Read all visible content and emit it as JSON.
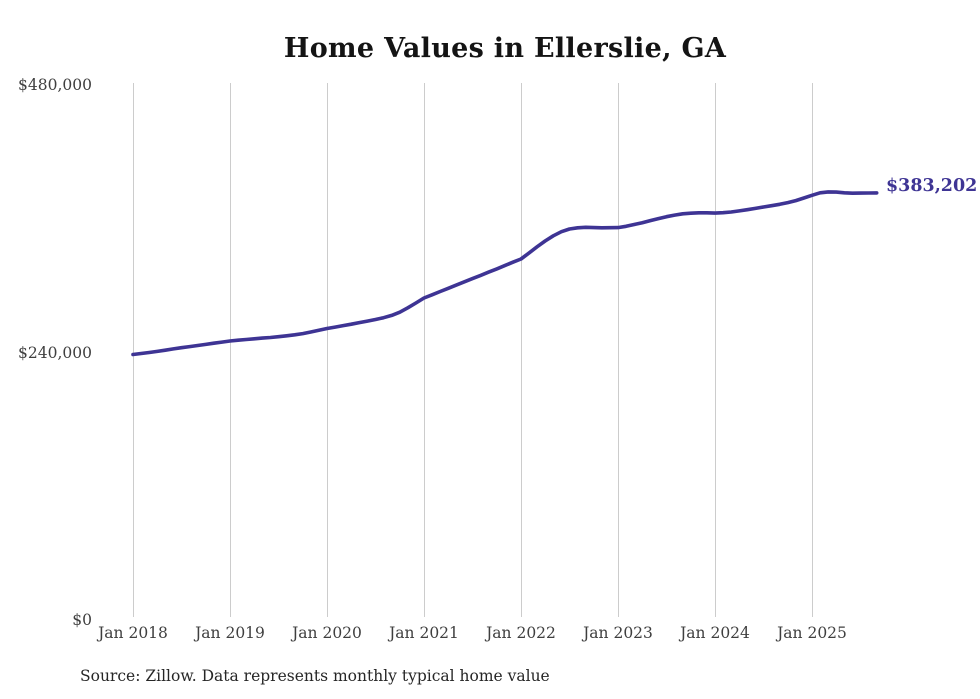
{
  "chart_data": {
    "type": "line",
    "title": "Home Values in Ellerslie, GA",
    "source": "Source: Zillow. Data represents monthly typical home value",
    "end_label": "$383,202",
    "latest_value": 383202,
    "xlabel": "",
    "ylabel": "",
    "ylim": [
      0,
      480000
    ],
    "grid": "vertical-only",
    "legend": "none",
    "accent_color": "#3e3494",
    "grid_color": "#cccccc",
    "yticks": [
      {
        "value": 0,
        "label": "$0"
      },
      {
        "value": 240000,
        "label": "$240,000"
      },
      {
        "value": 480000,
        "label": "$480,000"
      }
    ],
    "xticks": [
      {
        "month_index": 0,
        "label": "Jan 2018"
      },
      {
        "month_index": 12,
        "label": "Jan 2019"
      },
      {
        "month_index": 24,
        "label": "Jan 2020"
      },
      {
        "month_index": 36,
        "label": "Jan 2021"
      },
      {
        "month_index": 48,
        "label": "Jan 2022"
      },
      {
        "month_index": 60,
        "label": "Jan 2023"
      },
      {
        "month_index": 72,
        "label": "Jan 2024"
      },
      {
        "month_index": 84,
        "label": "Jan 2025"
      }
    ],
    "series": [
      {
        "name": "Monthly typical home value",
        "start_month": "2018-01",
        "end_month": "2025-09",
        "values": [
          238200,
          239100,
          240000,
          241000,
          242100,
          243200,
          244300,
          245300,
          246300,
          247300,
          248300,
          249300,
          250300,
          251000,
          251700,
          252300,
          252900,
          253500,
          254200,
          255000,
          255900,
          257000,
          258400,
          259900,
          261500,
          262800,
          264100,
          265400,
          266800,
          268200,
          269600,
          271200,
          273300,
          276200,
          280100,
          284400,
          288900,
          291800,
          294700,
          297600,
          300500,
          303400,
          306300,
          309200,
          312100,
          315000,
          318000,
          321000,
          323900,
          329400,
          334900,
          340100,
          344700,
          348400,
          350800,
          351900,
          352300,
          352100,
          351900,
          352000,
          352100,
          353200,
          354800,
          356500,
          358300,
          360100,
          361800,
          363300,
          364400,
          365000,
          365300,
          365300,
          365100,
          365400,
          366100,
          367000,
          368100,
          369300,
          370500,
          371700,
          373000,
          374500,
          376300,
          378600,
          381000,
          383300,
          384100,
          383900,
          383300,
          382900,
          383000,
          383100,
          383202
        ]
      }
    ]
  }
}
